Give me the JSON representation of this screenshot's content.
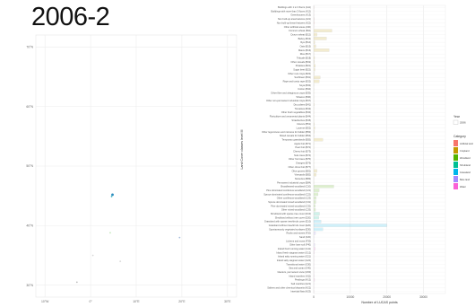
{
  "title": "2006-2",
  "chart_data": [
    {
      "type": "scatter",
      "description_kind": "map",
      "x_ticks": [
        "10°W",
        "0°",
        "10°E",
        "20°E",
        "30°E"
      ],
      "x_tick_values": [
        -10,
        0,
        10,
        20,
        30
      ],
      "y_ticks": [
        "70°N",
        "60°N",
        "50°N",
        "40°N",
        "30°N"
      ],
      "y_tick_values": [
        70,
        60,
        50,
        40,
        30
      ],
      "xlim": [
        -12,
        32
      ],
      "ylim": [
        28,
        72
      ],
      "grid": true,
      "points": [
        {
          "lon": 4.8,
          "lat": 45.2,
          "color": "#2b8cbe"
        },
        {
          "lon": 4.6,
          "lat": 44.9,
          "color": "#41b6c4"
        },
        {
          "lon": 4.3,
          "lat": 38.8,
          "color": "#c7e9c0"
        },
        {
          "lon": 19.5,
          "lat": 38.0,
          "color": "#a6bddb"
        },
        {
          "lon": 0.5,
          "lat": 35.0,
          "color": "#d9d9d9"
        },
        {
          "lon": 6.5,
          "lat": 34.0,
          "color": "#d9d9d9"
        },
        {
          "lon": -3.0,
          "lat": 30.5,
          "color": "#bdbdbd"
        }
      ]
    },
    {
      "type": "bar",
      "orientation": "horizontal",
      "ylabel": "Land Cover classes level III",
      "xlabel": "Number of LUCAS points",
      "x_ticks": [
        "0",
        "10000",
        "20000",
        "30000"
      ],
      "x_tick_values": [
        0,
        10000,
        20000,
        30000
      ],
      "xlim": [
        0,
        36000
      ],
      "grid": true,
      "legend": {
        "placement": "right",
        "year_title": "Year",
        "year_entries": [
          "2006"
        ],
        "category_title": "Category",
        "category_entries": [
          {
            "label": "Artificial land",
            "color": "#f8766d"
          },
          {
            "label": "Cropland",
            "color": "#c49a00"
          },
          {
            "label": "Woodland",
            "color": "#53b400"
          },
          {
            "label": "Shrubland",
            "color": "#00c094"
          },
          {
            "label": "Grassland",
            "color": "#00b6eb"
          },
          {
            "label": "Bare land",
            "color": "#a58aff"
          },
          {
            "label": "Water",
            "color": "#fb61d7"
          }
        ]
      },
      "categories": [
        "Buildings with 1 to 3 floors (A11)",
        "Buildings with more than 3 floors (A12)",
        "Greenhouses (A13)",
        "Non built-up area features (A21)",
        "Non built-up linear features (A22)",
        "Other artificial areas (A30)",
        "Common wheat (B11)",
        "Durum wheat (B12)",
        "Barley (B13)",
        "Rye (B14)",
        "Oats (B15)",
        "Maize (B16)",
        "Rice (B17)",
        "Triticale (B18)",
        "Other cereals (B19)",
        "Potatoes (B21)",
        "Sugar beet (B22)",
        "Other root crops (B23)",
        "Sunflower (B31)",
        "Rape and turnip rape (B32)",
        "Soya (B33)",
        "Cotton (B34)",
        "Other fibre and oleaginous crops (B35)",
        "Tobacco (B36)",
        "Other non-permanent industrial crops (B37)",
        "Dry pulses (B41)",
        "Tomatoes (B42)",
        "Other fresh vegetables (B43)",
        "Floriculture and ornamental plants (B44)",
        "Strawberries (B45)",
        "Clovers (B51)",
        "Lucerne (B52)",
        "Other leguminous and mixtures for fodder (B53)",
        "Mixed cereals for fodder (B54)",
        "Temporary grasslands (B55)",
        "Apple fruit (B71)",
        "Pear fruit (B72)",
        "Cherry fruit (B73)",
        "Nuts trees (B74)",
        "Other fruit trees (B75)",
        "Oranges (B76)",
        "Other citrus fruit (B77)",
        "Olive groves (B81)",
        "Vineyards (B82)",
        "Nurseries (B83)",
        "Permanent industrial crops (B84)",
        "Broadleaved woodland (C10)",
        "Pine dominated coniferous woodland (C21)",
        "Spruce dominated coniferous woodland (C22)",
        "Other coniferous woodland (C23)",
        "Spruce dominated mixed woodland (C31)",
        "Pine dominated mixed woodland (C32)",
        "Other mixed woodland (C33)",
        "Shrubland with sparse tree cover (D10)",
        "Shrubland without tree cover (D20)",
        "Grassland with sparse tree/shrub cover (E10)",
        "Grassland without tree/shrub cover (E20)",
        "Spontaneously vegetated surfaces (E30)",
        "Rocks and stones (F10)",
        "Sand (F20)",
        "Lichens and moss (F30)",
        "Other bare soil (F40)",
        "Inland fresh running water (G11)",
        "Inland fresh stagnant water (G12)",
        "Inland salty running water (G21)",
        "Inland salty stagnant water (G22)",
        "Transitional water (G30)",
        "Sea and ocean (G40)",
        "Glaciers, permanent snow (G50)",
        "Inland marshes (H11)",
        "Peatbogs (H12)",
        "Salt marshes (H21)",
        "Salines and other chemical deposits (H22)",
        "Intertidal flats (H23)"
      ],
      "values": [
        120,
        30,
        5,
        150,
        200,
        40,
        5000,
        900,
        3500,
        300,
        600,
        4200,
        80,
        250,
        200,
        450,
        350,
        120,
        1800,
        1500,
        60,
        40,
        30,
        25,
        40,
        150,
        35,
        80,
        10,
        10,
        200,
        300,
        150,
        100,
        2500,
        60,
        15,
        20,
        30,
        50,
        40,
        10,
        900,
        700,
        15,
        30,
        5500,
        1500,
        1200,
        700,
        600,
        450,
        500,
        1600,
        1400,
        2000,
        20000,
        2500,
        500,
        80,
        20,
        300,
        400,
        150,
        10,
        20,
        80,
        60,
        30,
        120,
        250,
        30,
        5,
        20
      ],
      "value_colors": [
        "#f8766d",
        "#f8766d",
        "#f8766d",
        "#f8766d",
        "#f8766d",
        "#f8766d",
        "#c49a00",
        "#c49a00",
        "#c49a00",
        "#c49a00",
        "#c49a00",
        "#c49a00",
        "#c49a00",
        "#c49a00",
        "#c49a00",
        "#c49a00",
        "#c49a00",
        "#c49a00",
        "#c49a00",
        "#c49a00",
        "#c49a00",
        "#c49a00",
        "#c49a00",
        "#c49a00",
        "#c49a00",
        "#c49a00",
        "#c49a00",
        "#c49a00",
        "#c49a00",
        "#c49a00",
        "#c49a00",
        "#c49a00",
        "#c49a00",
        "#c49a00",
        "#c49a00",
        "#c49a00",
        "#c49a00",
        "#c49a00",
        "#c49a00",
        "#c49a00",
        "#c49a00",
        "#c49a00",
        "#c49a00",
        "#c49a00",
        "#c49a00",
        "#c49a00",
        "#53b400",
        "#53b400",
        "#53b400",
        "#53b400",
        "#53b400",
        "#53b400",
        "#53b400",
        "#00c094",
        "#00c094",
        "#00b6eb",
        "#00b6eb",
        "#00b6eb",
        "#a58aff",
        "#a58aff",
        "#a58aff",
        "#a58aff",
        "#fb61d7",
        "#fb61d7",
        "#fb61d7",
        "#fb61d7",
        "#fb61d7",
        "#fb61d7",
        "#fb61d7",
        "#fb61d7",
        "#fb61d7",
        "#fb61d7",
        "#fb61d7",
        "#fb61d7"
      ]
    }
  ]
}
